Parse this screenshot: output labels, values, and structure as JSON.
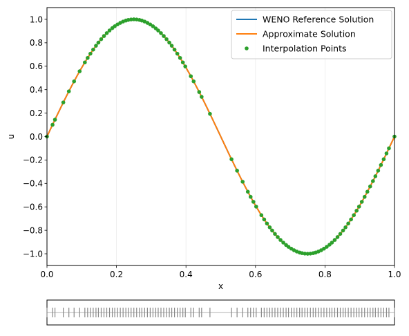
{
  "chart_data": [
    {
      "type": "line",
      "xlabel": "x",
      "ylabel": "u",
      "xlim": [
        0.0,
        1.0
      ],
      "ylim": [
        -1.1,
        1.1
      ],
      "xticks": [
        0.0,
        0.2,
        0.4,
        0.6,
        0.8,
        1.0
      ],
      "xtick_labels": [
        "0.0",
        "0.2",
        "0.4",
        "0.6",
        "0.8",
        "1.0"
      ],
      "yticks": [
        -1.0,
        -0.8,
        -0.6,
        -0.4,
        -0.2,
        0.0,
        0.2,
        0.4,
        0.6,
        0.8,
        1.0
      ],
      "ytick_labels": [
        "−1.0",
        "−0.8",
        "−0.6",
        "−0.4",
        "−0.2",
        "0.0",
        "0.2",
        "0.4",
        "0.6",
        "0.8",
        "1.0"
      ],
      "grid": "vertical-faint",
      "legend_position": "top-right",
      "series": [
        {
          "name": "WENO Reference Solution",
          "kind": "line",
          "color": "#1f77b4",
          "function": "sin(2*pi*x)"
        },
        {
          "name": "Approximate Solution",
          "kind": "line",
          "color": "#ff7f0e",
          "function": "sin(2*pi*x)"
        },
        {
          "name": "Interpolation Points",
          "kind": "scatter",
          "color": "#2ca02c",
          "x": [
            0.0,
            0.016,
            0.023,
            0.047,
            0.063,
            0.078,
            0.094,
            0.109,
            0.117,
            0.125,
            0.133,
            0.141,
            0.148,
            0.156,
            0.164,
            0.172,
            0.18,
            0.188,
            0.195,
            0.203,
            0.211,
            0.219,
            0.227,
            0.234,
            0.242,
            0.25,
            0.258,
            0.266,
            0.273,
            0.281,
            0.289,
            0.297,
            0.305,
            0.313,
            0.32,
            0.328,
            0.336,
            0.344,
            0.352,
            0.359,
            0.367,
            0.375,
            0.383,
            0.391,
            0.398,
            0.414,
            0.422,
            0.438,
            0.445,
            0.469,
            0.531,
            0.547,
            0.563,
            0.578,
            0.586,
            0.594,
            0.602,
            0.617,
            0.625,
            0.633,
            0.641,
            0.648,
            0.656,
            0.664,
            0.672,
            0.68,
            0.688,
            0.695,
            0.703,
            0.711,
            0.719,
            0.727,
            0.734,
            0.742,
            0.75,
            0.758,
            0.766,
            0.773,
            0.781,
            0.789,
            0.797,
            0.805,
            0.813,
            0.82,
            0.828,
            0.836,
            0.844,
            0.852,
            0.859,
            0.867,
            0.875,
            0.883,
            0.891,
            0.898,
            0.906,
            0.914,
            0.922,
            0.93,
            0.938,
            0.945,
            0.953,
            0.961,
            0.969,
            0.977,
            0.984,
            1.0
          ]
        }
      ]
    },
    {
      "type": "scatter",
      "marker": "vertical-tick",
      "description_of_points": "same x positions as interpolation points",
      "xlim": [
        0.0,
        1.0
      ],
      "baseline_color": "#cccccc",
      "tick_color": "#888888"
    }
  ]
}
